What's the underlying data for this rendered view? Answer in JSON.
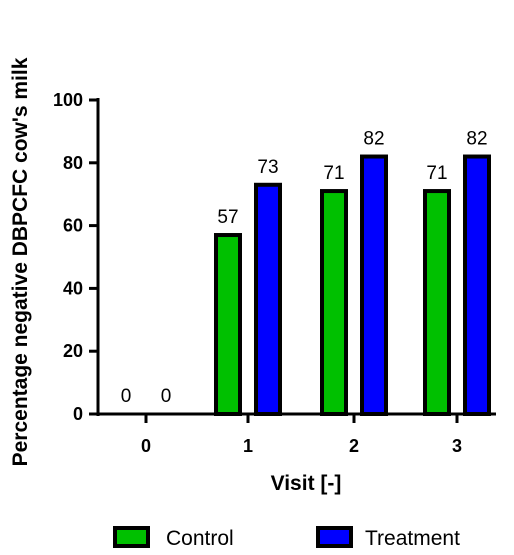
{
  "chart_data": {
    "type": "bar",
    "xlabel": "Visit [-]",
    "ylabel": "Percentage negative DBPCFC cow's milk",
    "categories": [
      "0",
      "1",
      "2",
      "3"
    ],
    "ylim": [
      0,
      100
    ],
    "yticks": [
      0,
      20,
      40,
      60,
      80,
      100
    ],
    "series": [
      {
        "name": "Control",
        "color": "#00c000",
        "values": [
          0,
          57,
          71,
          71
        ],
        "labels": [
          "0",
          "57",
          "71",
          "71"
        ]
      },
      {
        "name": "Treatment",
        "color": "#0000ff",
        "values": [
          0,
          73,
          82,
          82
        ],
        "labels": [
          "0",
          "73",
          "82",
          "82"
        ]
      }
    ],
    "legend_position": "bottom",
    "grid": false
  }
}
